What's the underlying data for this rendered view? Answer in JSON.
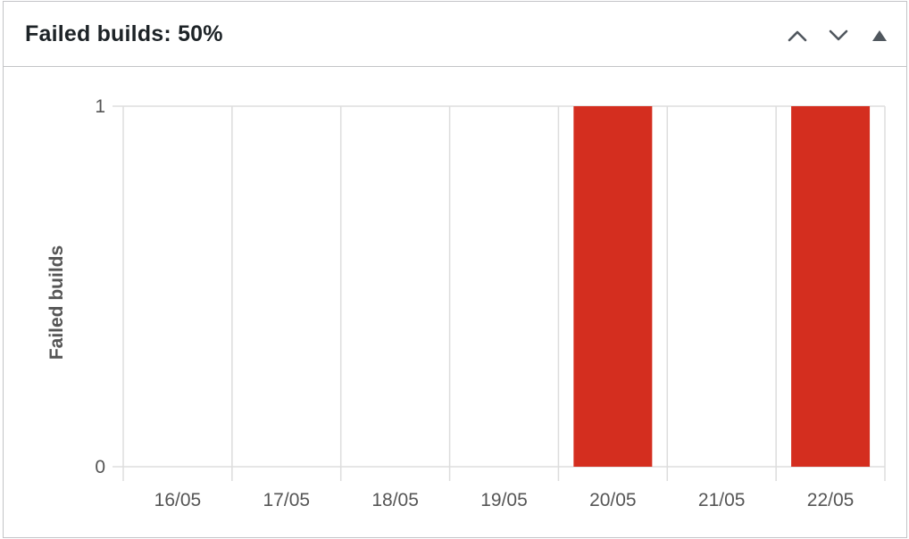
{
  "widget": {
    "title": "Failed builds: 50%",
    "actions": {
      "move_up_label": "Move up",
      "move_down_label": "Move down",
      "toggle_label": "Toggle panel"
    }
  },
  "icons": {
    "move_up": "chevron-up-icon",
    "move_down": "chevron-down-icon",
    "toggle": "triangle-up-icon"
  },
  "colors": {
    "bar": "#d42e1f",
    "grid": "#dddddd",
    "axis_text": "#555555",
    "title_text": "#1d2327"
  },
  "chart_data": {
    "type": "bar",
    "title": "",
    "xlabel": "",
    "ylabel": "Failed builds",
    "categories": [
      "16/05",
      "17/05",
      "18/05",
      "19/05",
      "20/05",
      "21/05",
      "22/05"
    ],
    "values": [
      0,
      0,
      0,
      0,
      1,
      0,
      1
    ],
    "yticks": [
      "0",
      "1"
    ],
    "ylim": [
      0,
      1
    ],
    "grid": true,
    "legend": "none"
  }
}
